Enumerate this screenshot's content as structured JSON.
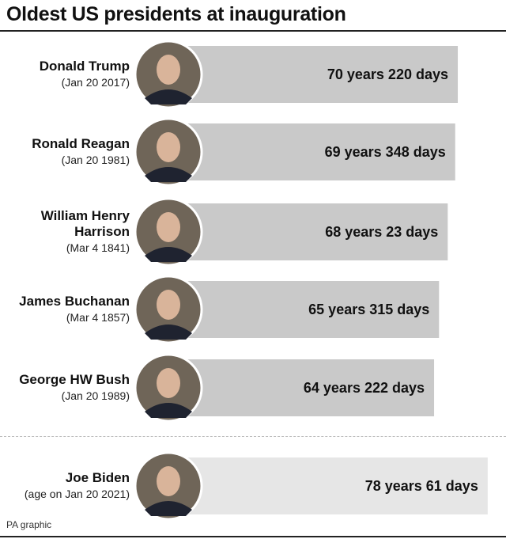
{
  "title": "Oldest US presidents at inauguration",
  "footer": "PA graphic",
  "colors": {
    "bar": "#c9c9c9",
    "bar_highlight": "#e6e6e6",
    "portrait_ring": "#ffffff",
    "portrait_fill": "#6f6558"
  },
  "chart_data": {
    "type": "bar",
    "orientation": "horizontal",
    "title": "Oldest US presidents at inauguration",
    "xlabel": "",
    "ylabel": "",
    "xlim_years": [
      0,
      79
    ],
    "grid": false,
    "categories": [
      "Donald Trump",
      "Ronald Reagan",
      "William Henry Harrison",
      "James Buchanan",
      "George HW Bush",
      "Joe Biden"
    ],
    "rows": [
      {
        "name_lines": [
          "Donald Trump"
        ],
        "date": "(Jan 20 2017)",
        "years": 70,
        "days": 220,
        "label": "70 years 220 days",
        "portrait": "trump-portrait",
        "highlight": false
      },
      {
        "name_lines": [
          "Ronald Reagan"
        ],
        "date": "(Jan 20 1981)",
        "years": 69,
        "days": 348,
        "label": "69 years 348 days",
        "portrait": "reagan-portrait",
        "highlight": false
      },
      {
        "name_lines": [
          "William Henry",
          "Harrison"
        ],
        "date": "(Mar 4 1841)",
        "years": 68,
        "days": 23,
        "label": "68 years 23 days",
        "portrait": "harrison-portrait",
        "highlight": false
      },
      {
        "name_lines": [
          "James Buchanan"
        ],
        "date": "(Mar 4 1857)",
        "years": 65,
        "days": 315,
        "label": "65 years 315 days",
        "portrait": "buchanan-portrait",
        "highlight": false
      },
      {
        "name_lines": [
          "George HW Bush"
        ],
        "date": "(Jan 20 1989)",
        "years": 64,
        "days": 222,
        "label": "64 years 222 days",
        "portrait": "bush-portrait",
        "highlight": false
      },
      {
        "name_lines": [
          "Joe Biden"
        ],
        "date": "(age on Jan 20 2021)",
        "years": 78,
        "days": 61,
        "label": "78 years 61 days",
        "portrait": "biden-portrait",
        "highlight": true
      }
    ]
  }
}
